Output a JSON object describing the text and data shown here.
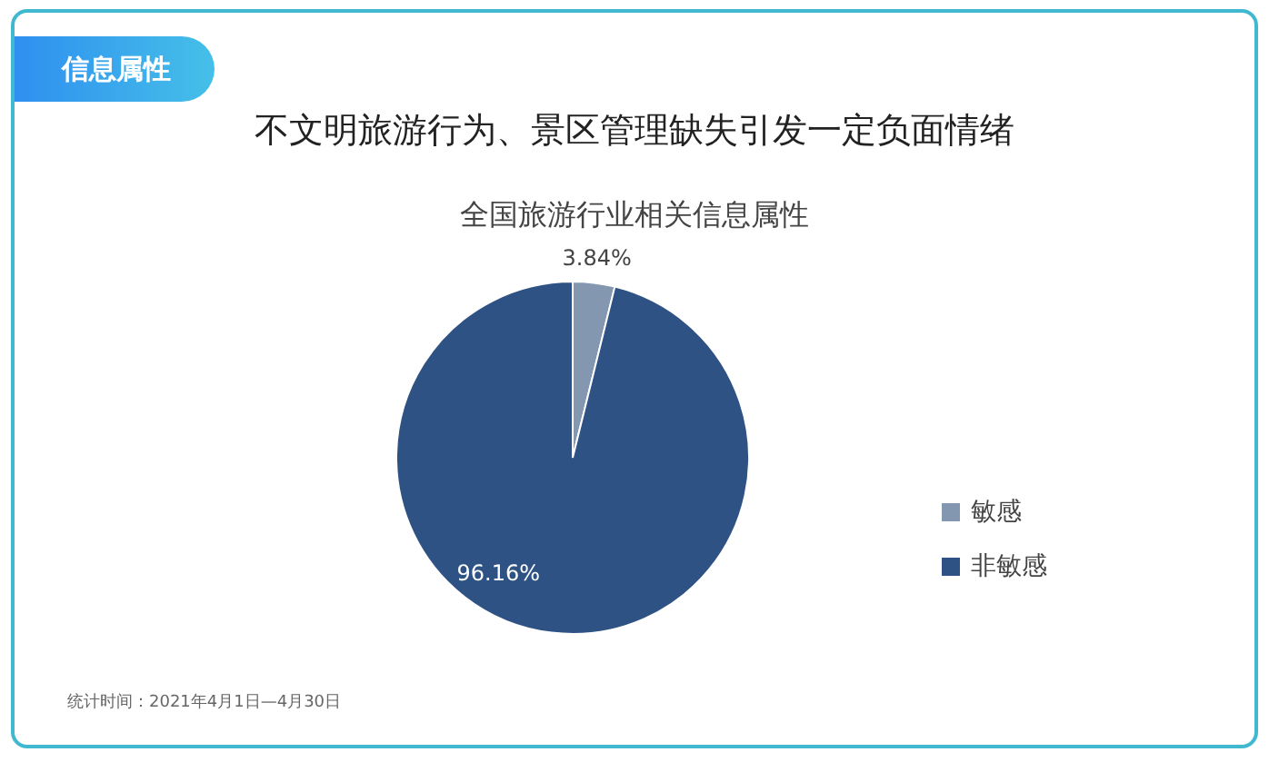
{
  "chart_data": {
    "type": "pie",
    "title": "不文明旅游行为、景区管理缺失引发一定负面情绪",
    "subtitle": "全国旅游行业相关信息属性",
    "categories": [
      "敏感",
      "非敏感"
    ],
    "values": [
      3.84,
      96.16
    ],
    "colors": [
      "#8397b0",
      "#2e5283"
    ],
    "value_labels": [
      "3.84%",
      "96.16%"
    ],
    "legend": "right",
    "annotations": [
      "信息属性",
      "统计时间：2021年4月1日—4月30日"
    ]
  }
}
